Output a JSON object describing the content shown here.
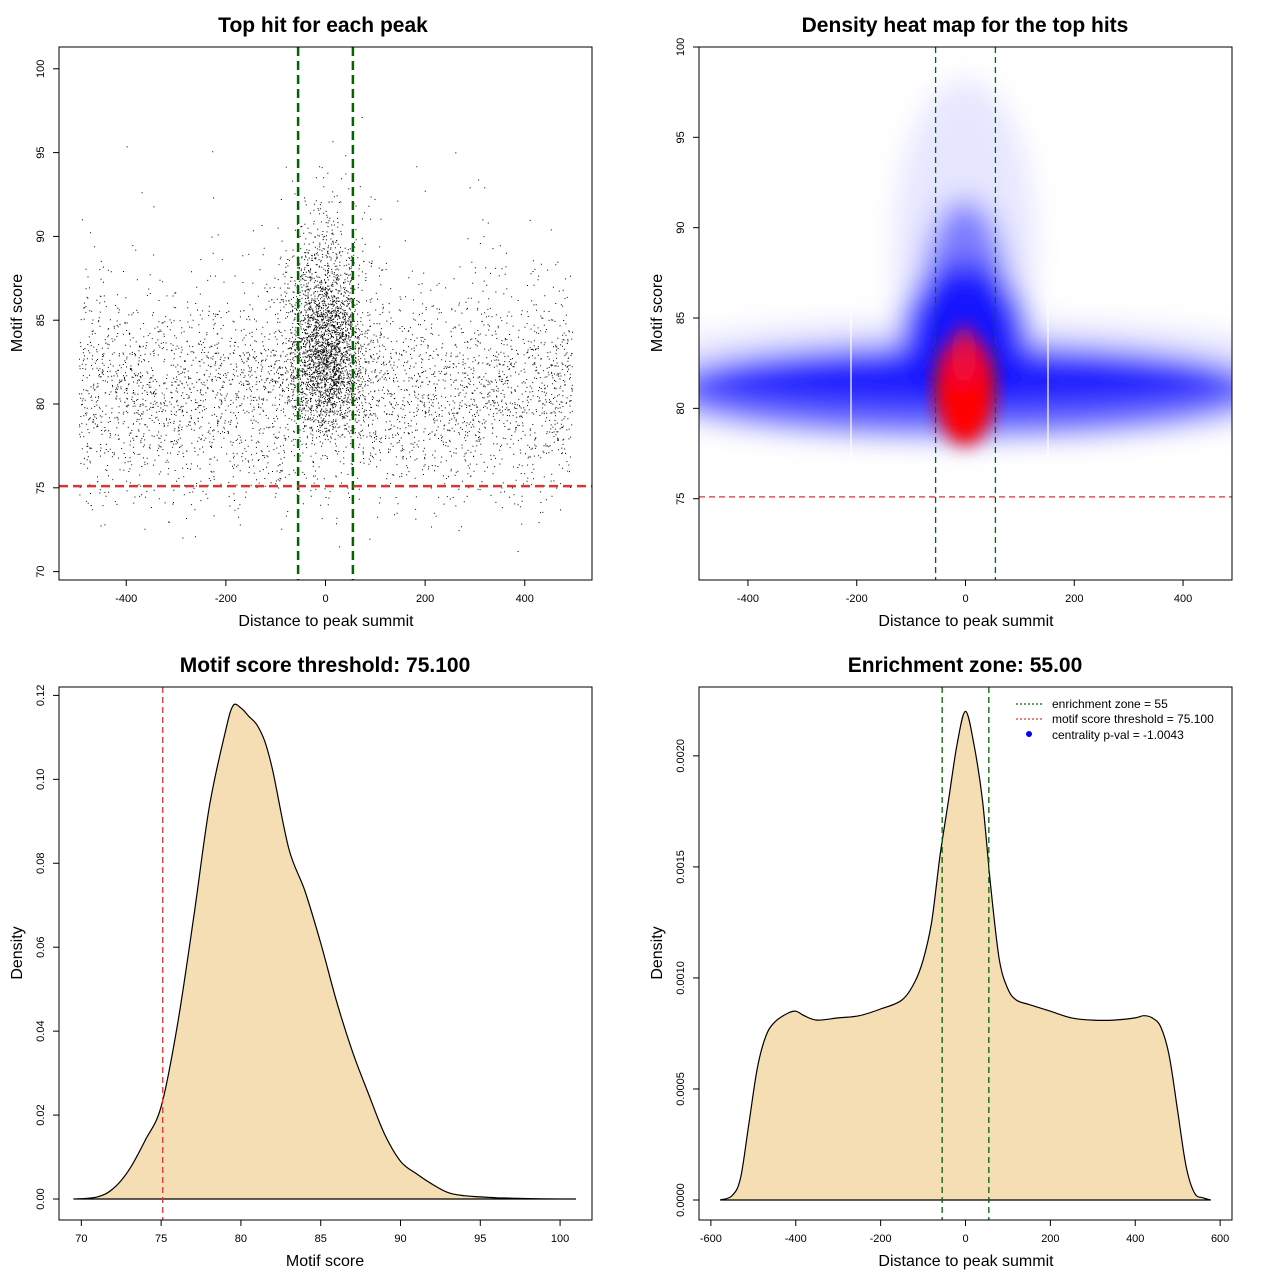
{
  "chart_data": [
    {
      "type": "scatter",
      "title": "Top hit for each peak",
      "xlabel": "Distance to peak summit",
      "ylabel": "Motif score",
      "xlim": [
        -535,
        535
      ],
      "ylim": [
        69.5,
        101.3
      ],
      "xticks": [
        "-400",
        "-200",
        "0",
        "200",
        "400"
      ],
      "xtick_values": [
        -400,
        -200,
        0,
        200,
        400
      ],
      "yticks": [
        "70",
        "75",
        "80",
        "85",
        "90",
        "95",
        "100"
      ],
      "ytick_values": [
        70,
        75,
        80,
        85,
        90,
        95,
        100
      ],
      "reference_lines": {
        "vertical": [
          -55,
          55
        ],
        "horizontal": [
          75.1
        ]
      },
      "colors": {
        "points": "#000000",
        "vline": "#006400",
        "hline": "#dd3333"
      },
      "notes": {
        "x_uniform_range": [
          -495,
          495
        ],
        "y_center": 80.5,
        "central_enrichment": "points concentrate near distance 0 with higher scores"
      }
    },
    {
      "type": "heatmap",
      "title": "Density heat map for the top hits",
      "xlabel": "Distance to peak summit",
      "ylabel": "Motif score",
      "xlim": [
        -490,
        490
      ],
      "ylim": [
        70.5,
        100
      ],
      "xticks": [
        "-400",
        "-200",
        "0",
        "200",
        "400"
      ],
      "xtick_values": [
        -400,
        -200,
        0,
        200,
        400
      ],
      "yticks": [
        "75",
        "80",
        "85",
        "90",
        "95",
        "100"
      ],
      "ytick_values": [
        75,
        80,
        85,
        90,
        95,
        100
      ],
      "reference_lines": {
        "vertical": [
          -55,
          55
        ],
        "horizontal": [
          75.1
        ]
      },
      "colors": {
        "low": "#ffffff",
        "mid": "#0000ff",
        "high": "#ff0000",
        "vline": "#006400",
        "hline": "#dd3333"
      }
    },
    {
      "type": "area",
      "title": "Motif score threshold: 75.100",
      "xlabel": "Motif score",
      "ylabel": "Density",
      "xlim": [
        68.6,
        102
      ],
      "ylim": [
        -0.005,
        0.122
      ],
      "xticks": [
        "70",
        "75",
        "80",
        "85",
        "90",
        "95",
        "100"
      ],
      "xtick_values": [
        70,
        75,
        80,
        85,
        90,
        95,
        100
      ],
      "yticks": [
        "0.00",
        "0.02",
        "0.04",
        "0.06",
        "0.08",
        "0.10",
        "0.12"
      ],
      "ytick_values": [
        0,
        0.02,
        0.04,
        0.06,
        0.08,
        0.1,
        0.12
      ],
      "reference_lines": {
        "vertical": [
          75.1
        ]
      },
      "colors": {
        "fill": "#f5deb3",
        "line": "#000000",
        "vline": "#dd3333"
      },
      "x": [
        69.5,
        71,
        72,
        73,
        74,
        75,
        76,
        77,
        78,
        79,
        79.5,
        80,
        80.5,
        81,
        81.5,
        82,
        83,
        84,
        85,
        86,
        87,
        88,
        89,
        90,
        91,
        92,
        93,
        94,
        95,
        96,
        97,
        98,
        100,
        101
      ],
      "values": [
        0,
        0.0005,
        0.0025,
        0.007,
        0.014,
        0.022,
        0.041,
        0.066,
        0.093,
        0.111,
        0.1175,
        0.117,
        0.115,
        0.113,
        0.109,
        0.102,
        0.0835,
        0.0735,
        0.061,
        0.047,
        0.035,
        0.025,
        0.0155,
        0.009,
        0.006,
        0.0035,
        0.0015,
        0.0008,
        0.0005,
        0.0003,
        0.0002,
        0.0001,
        0,
        0
      ]
    },
    {
      "type": "area",
      "title": "Enrichment zone: 55.00",
      "xlabel": "Distance to peak summit",
      "ylabel": "Density",
      "xlim": [
        -628,
        628
      ],
      "ylim": [
        -9e-05,
        0.00231
      ],
      "xticks": [
        "-600",
        "-400",
        "-200",
        "0",
        "200",
        "400",
        "600"
      ],
      "xtick_values": [
        -600,
        -400,
        -200,
        0,
        200,
        400,
        600
      ],
      "yticks": [
        "0.0000",
        "0.0005",
        "0.0010",
        "0.0015",
        "0.0020"
      ],
      "ytick_values": [
        0,
        0.0005,
        0.001,
        0.0015,
        0.002
      ],
      "reference_lines": {
        "vertical": [
          -55,
          55
        ]
      },
      "colors": {
        "fill": "#f5deb3",
        "line": "#000000",
        "vline": "#006400"
      },
      "x": [
        -578,
        -550,
        -530,
        -510,
        -490,
        -470,
        -450,
        -420,
        -400,
        -380,
        -350,
        -300,
        -250,
        -200,
        -150,
        -120,
        -100,
        -80,
        -60,
        -40,
        -20,
        0,
        20,
        40,
        60,
        80,
        100,
        120,
        150,
        200,
        250,
        300,
        350,
        400,
        420,
        440,
        460,
        480,
        500,
        520,
        540,
        560,
        578
      ],
      "values": [
        0,
        2e-05,
        0.0001,
        0.00035,
        0.0006,
        0.00074,
        0.0008,
        0.00084,
        0.00085,
        0.00083,
        0.00081,
        0.00082,
        0.00083,
        0.00086,
        0.0009,
        0.00098,
        0.00108,
        0.00125,
        0.00155,
        0.0018,
        0.00205,
        0.0022,
        0.00205,
        0.0018,
        0.0014,
        0.00108,
        0.00095,
        0.0009,
        0.00088,
        0.00085,
        0.00082,
        0.00081,
        0.00081,
        0.00082,
        0.00083,
        0.00082,
        0.00078,
        0.00065,
        0.0004,
        0.00015,
        3e-05,
        1e-05,
        0
      ]
    }
  ],
  "legend": [
    {
      "label": "enrichment zone = 55",
      "color": "#006400",
      "style": "dotted-line"
    },
    {
      "label": "motif score threshold = 75.100",
      "color": "#dd3333",
      "style": "dotted-line"
    },
    {
      "label": "centrality p-val = -1.0043",
      "color": "#0000ff",
      "style": "dot"
    }
  ]
}
